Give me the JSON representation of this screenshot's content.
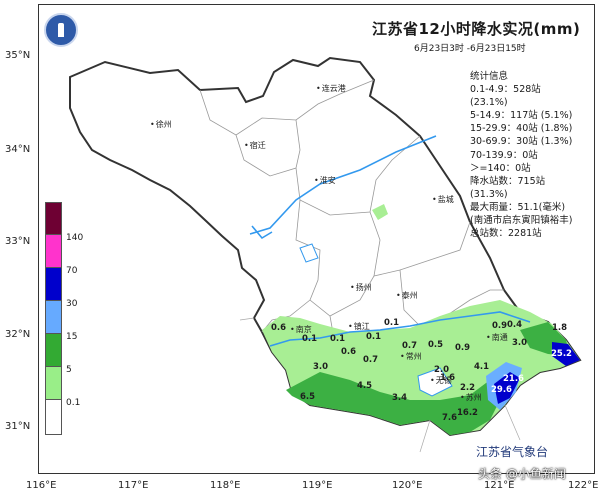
{
  "title": "江苏省12小时降水实况(mm)",
  "time_range": "6月23日3时 -6月23日15时",
  "stats": {
    "heading": "统计信息",
    "lines": [
      "0.1-4.9：528站",
      "(23.1%)",
      "5-14.9：117站 (5.1%)",
      "15-29.9：40站 (1.8%)",
      "30-69.9：30站 (1.3%)",
      "70-139.9：0站",
      "＞=140：0站",
      "降水站数：715站",
      "(31.3%)",
      "最大雨量：51.1(毫米)",
      "(南通市启东寅阳镇裕丰)",
      "总站数：2281站"
    ]
  },
  "agency": "江苏省气象台",
  "watermark": "头条 @小鱼新闻",
  "lat_labels": [
    "35°N",
    "34°N",
    "33°N",
    "32°N",
    "31°N"
  ],
  "lon_labels": [
    "116°E",
    "117°E",
    "118°E",
    "119°E",
    "120°E",
    "121°E",
    "122°E"
  ],
  "legend": {
    "colors": [
      "#6e0033",
      "#ff33cc",
      "#0000cc",
      "#66aaff",
      "#33aa33",
      "#99ee88",
      "#ffffff"
    ],
    "labels": [
      "140",
      "70",
      "30",
      "15",
      "5",
      "0.1"
    ]
  },
  "cities": [
    {
      "name": "连云港"
    },
    {
      "name": "徐州"
    },
    {
      "name": "宿迁"
    },
    {
      "name": "淮安"
    },
    {
      "name": "盐城"
    },
    {
      "name": "扬州"
    },
    {
      "name": "泰州"
    },
    {
      "name": "南京"
    },
    {
      "name": "镇江"
    },
    {
      "name": "常州"
    },
    {
      "name": "无锡"
    },
    {
      "name": "苏州"
    },
    {
      "name": "南通"
    }
  ],
  "values": [
    "0.6",
    "0.1",
    "0.1",
    "0.1",
    "0.1",
    "0.7",
    "0.5",
    "0.9",
    "0.9",
    "0.4",
    "1.8",
    "3.0",
    "25.2",
    "0.6",
    "0.7",
    "3.0",
    "2.0",
    "2.2",
    "4.1",
    "1.6",
    "21.6",
    "29.6",
    "4.5",
    "3.4",
    "6.5",
    "7.6",
    "16.2"
  ]
}
